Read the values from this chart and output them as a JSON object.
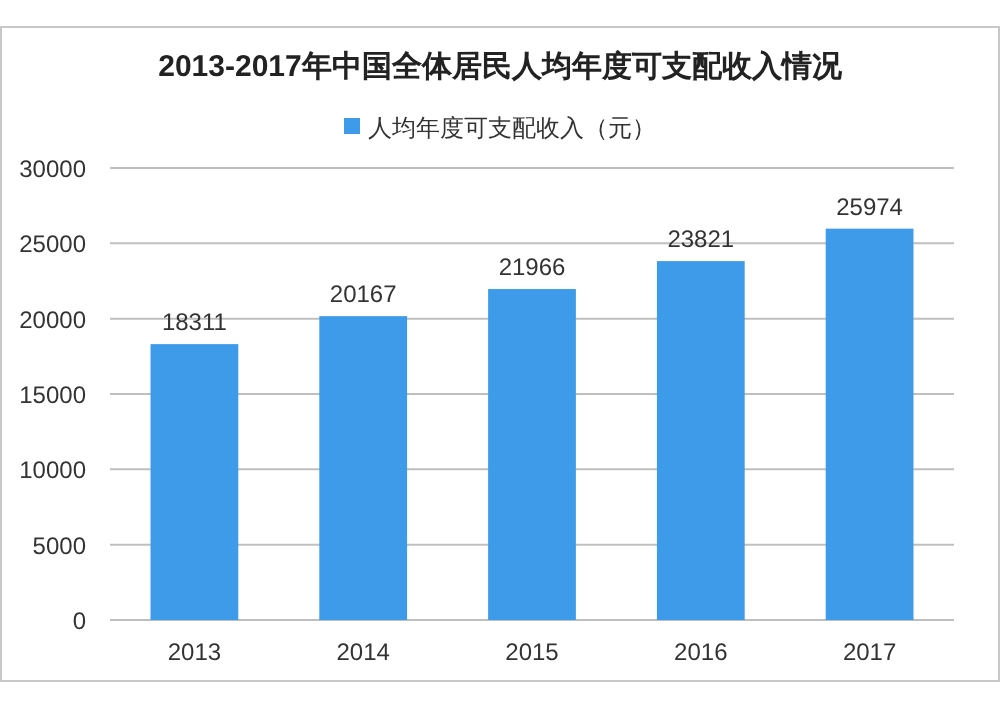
{
  "chart_data": {
    "type": "bar",
    "title": "2013-2017年中国全体居民人均年度可支配收入情况",
    "categories": [
      "2013",
      "2014",
      "2015",
      "2016",
      "2017"
    ],
    "series": [
      {
        "name": "人均年度可支配收入（元）",
        "color": "#3d9be9",
        "values": [
          18311,
          20167,
          21966,
          23821,
          25974
        ]
      }
    ],
    "ylim": [
      0,
      30000
    ],
    "yticks": [
      0,
      5000,
      10000,
      15000,
      20000,
      25000,
      30000
    ],
    "grid": "y",
    "legend": "top",
    "data_labels": true
  }
}
